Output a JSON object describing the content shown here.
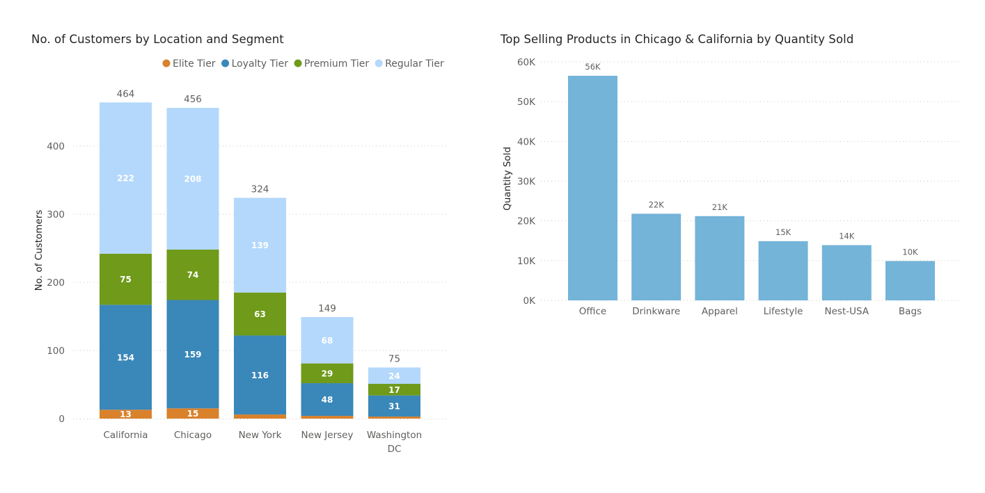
{
  "chart_data": [
    {
      "type": "bar",
      "stacked": true,
      "title": "No. of Customers by Location and Segment",
      "xlabel": "",
      "ylabel": "No. of Customers",
      "categories": [
        "California",
        "Chicago",
        "New York",
        "New Jersey",
        "Washington DC"
      ],
      "series": [
        {
          "name": "Elite Tier",
          "color": "#d9812b",
          "values": [
            13,
            15,
            6,
            4,
            3
          ],
          "labels": [
            "13",
            "15",
            "",
            "",
            ""
          ]
        },
        {
          "name": "Loyalty Tier",
          "color": "#3a87b9",
          "values": [
            154,
            159,
            116,
            48,
            31
          ],
          "labels": [
            "154",
            "159",
            "116",
            "48",
            "31"
          ]
        },
        {
          "name": "Premium Tier",
          "color": "#6f9a1a",
          "values": [
            75,
            74,
            63,
            29,
            17
          ],
          "labels": [
            "75",
            "74",
            "63",
            "29",
            "17"
          ]
        },
        {
          "name": "Regular Tier",
          "color": "#b3d8fb",
          "values": [
            222,
            208,
            139,
            68,
            24
          ],
          "labels": [
            "222",
            "208",
            "139",
            "68",
            "24"
          ]
        }
      ],
      "totals": [
        464,
        456,
        324,
        149,
        75
      ],
      "yticks": [
        "0",
        "100",
        "200",
        "300",
        "400"
      ],
      "ylim": [
        0,
        465
      ],
      "grid": true,
      "legend_position": "top-right"
    },
    {
      "type": "bar",
      "title": "Top Selling Products in Chicago & California by Quantity Sold",
      "xlabel": "",
      "ylabel": "Quantity Sold",
      "categories": [
        "Office",
        "Drinkware",
        "Apparel",
        "Lifestyle",
        "Nest-USA",
        "Bags"
      ],
      "values": [
        56500,
        21800,
        21200,
        14900,
        13900,
        9900
      ],
      "labels": [
        "56K",
        "22K",
        "21K",
        "15K",
        "14K",
        "10K"
      ],
      "color": "#74b4d8",
      "yticks": [
        "0K",
        "10K",
        "20K",
        "30K",
        "40K",
        "50K",
        "60K"
      ],
      "ylim": [
        0,
        60000
      ],
      "grid": true
    }
  ]
}
